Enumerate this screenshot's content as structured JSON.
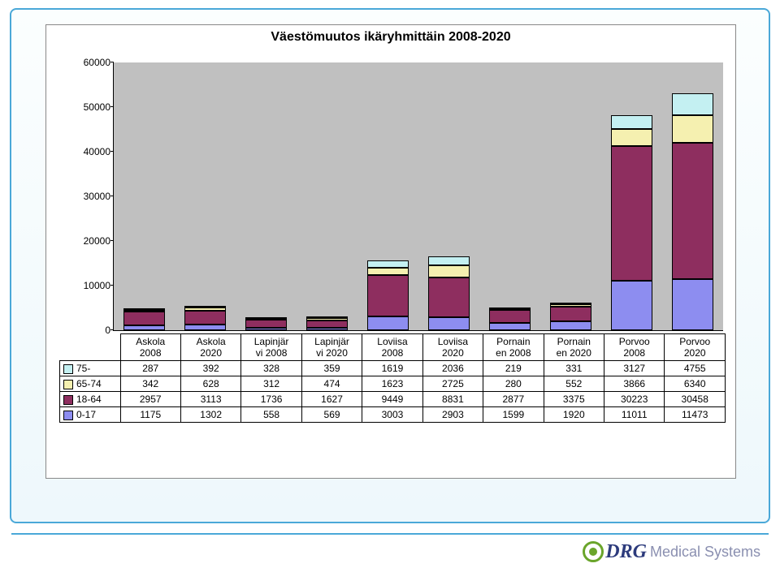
{
  "chart": {
    "type": "stacked-bar",
    "title": "Väestömuutos ikäryhmittäin 2008-2020",
    "title_fontsize": 16,
    "background_color": "#c0c0c0",
    "border_color": "#000000",
    "ylim": [
      0,
      60000
    ],
    "ytick_step": 10000,
    "yticks": [
      "0",
      "10000",
      "20000",
      "30000",
      "40000",
      "50000",
      "60000"
    ],
    "categories": [
      "Askola 2008",
      "Askola 2020",
      "Lapinjärvi 2008",
      "Lapinjärvi 2020",
      "Loviisa 2008",
      "Loviisa 2020",
      "Pornainen 2008",
      "Pornainen 2020",
      "Porvoo 2008",
      "Porvoo 2020"
    ],
    "categories_wrapped": [
      [
        "Askola",
        "2008"
      ],
      [
        "Askola",
        "2020"
      ],
      [
        "Lapinjär",
        "vi 2008"
      ],
      [
        "Lapinjär",
        "vi 2020"
      ],
      [
        "Loviisa",
        "2008"
      ],
      [
        "Loviisa",
        "2020"
      ],
      [
        "Pornain",
        "en 2008"
      ],
      [
        "Pornain",
        "en 2020"
      ],
      [
        "Porvoo",
        "2008"
      ],
      [
        "Porvoo",
        "2020"
      ]
    ],
    "series": [
      {
        "name": "75-",
        "color": "#c4f0f2",
        "values": [
          287,
          392,
          328,
          359,
          1619,
          2036,
          219,
          331,
          3127,
          4755
        ]
      },
      {
        "name": "65-74",
        "color": "#f5f0b0",
        "values": [
          342,
          628,
          312,
          474,
          1623,
          2725,
          280,
          552,
          3866,
          6340
        ]
      },
      {
        "name": "18-64",
        "color": "#8e2e5f",
        "values": [
          2957,
          3113,
          1736,
          1627,
          9449,
          8831,
          2877,
          3375,
          30223,
          30458
        ]
      },
      {
        "name": "0-17",
        "color": "#8d8df0",
        "values": [
          1175,
          1302,
          558,
          569,
          3003,
          2903,
          1599,
          1920,
          11011,
          11473
        ]
      }
    ],
    "bar_width": 0.68,
    "label_fontsize": 12
  },
  "logo": {
    "brand": "DRG",
    "suffix": "Medical Systems",
    "accent_color": "#6aa52b",
    "brand_color": "#2d3b7c"
  }
}
